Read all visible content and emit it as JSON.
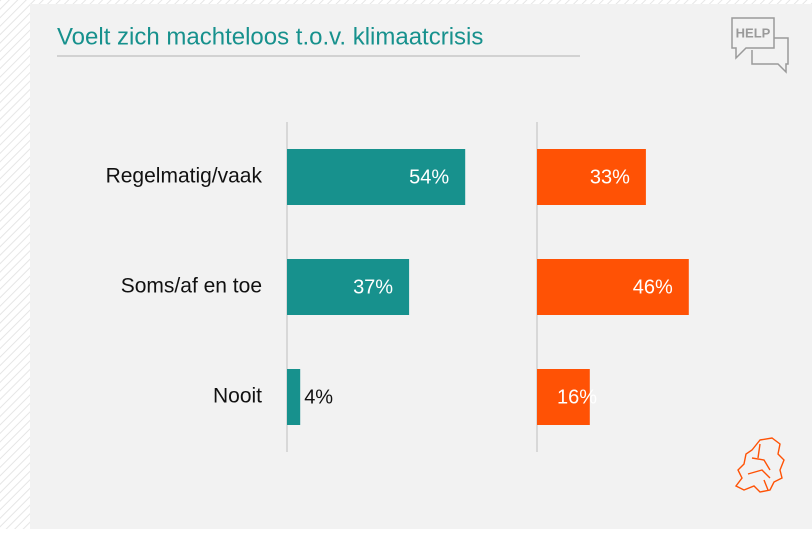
{
  "chart_data": {
    "type": "bar",
    "orientation": "horizontal",
    "title": "Voelt zich machteloos t.o.v. klimaatcrisis",
    "categories": [
      "Regelmatig/vaak",
      "Soms/af en toe",
      "Nooit"
    ],
    "series": [
      {
        "color": "#17918d",
        "values": [
          54,
          37,
          4
        ],
        "value_labels": [
          "54%",
          "37%",
          "4%"
        ]
      },
      {
        "color": "#ff5205",
        "values": [
          33,
          46,
          16
        ],
        "value_labels": [
          "33%",
          "46%",
          "16%"
        ]
      }
    ]
  },
  "badge": "HELP"
}
